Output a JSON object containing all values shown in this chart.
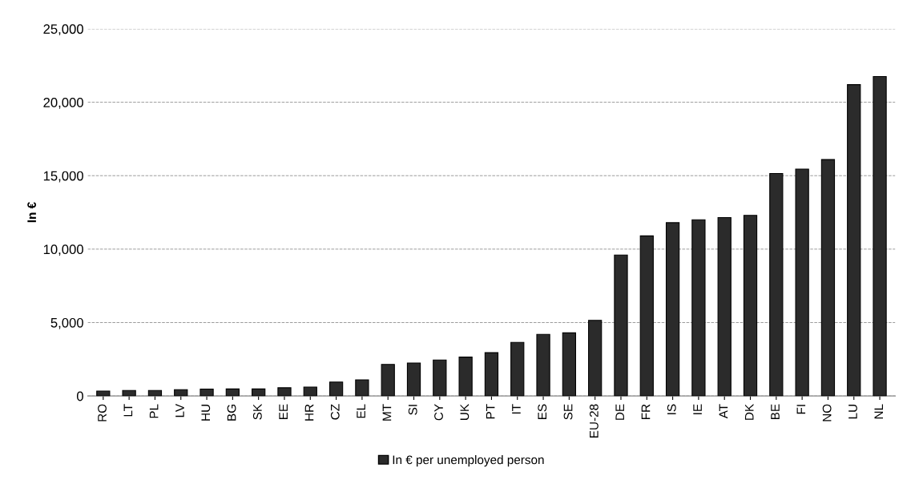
{
  "chart_data": {
    "type": "bar",
    "ylabel": "In €",
    "categories": [
      "RO",
      "LT",
      "PL",
      "LV",
      "HU",
      "BG",
      "SK",
      "EE",
      "HR",
      "CZ",
      "EL",
      "MT",
      "SI",
      "CY",
      "UK",
      "PT",
      "IT",
      "ES",
      "SE",
      "EU-28",
      "DE",
      "FR",
      "IS",
      "IE",
      "AT",
      "DK",
      "BE",
      "FI",
      "NO",
      "LU",
      "NL"
    ],
    "series": [
      {
        "name": "In € per unemployed person",
        "color": "#2b2b2b",
        "values": [
          330,
          380,
          380,
          430,
          470,
          480,
          480,
          560,
          600,
          950,
          1100,
          2150,
          2250,
          2450,
          2650,
          2950,
          3650,
          4200,
          4300,
          5150,
          9600,
          10900,
          11800,
          12000,
          12150,
          12300,
          15150,
          15450,
          16100,
          21200,
          21750
        ]
      }
    ],
    "ylim": [
      0,
      25000
    ],
    "yticks": [
      {
        "value": 0,
        "label": "0"
      },
      {
        "value": 5000,
        "label": "5,000"
      },
      {
        "value": 10000,
        "label": "10,000"
      },
      {
        "value": 15000,
        "label": "15,000"
      },
      {
        "value": 20000,
        "label": "20,000"
      },
      {
        "value": 25000,
        "label": "25,000"
      }
    ],
    "grid": "y",
    "legend": "bottom"
  }
}
